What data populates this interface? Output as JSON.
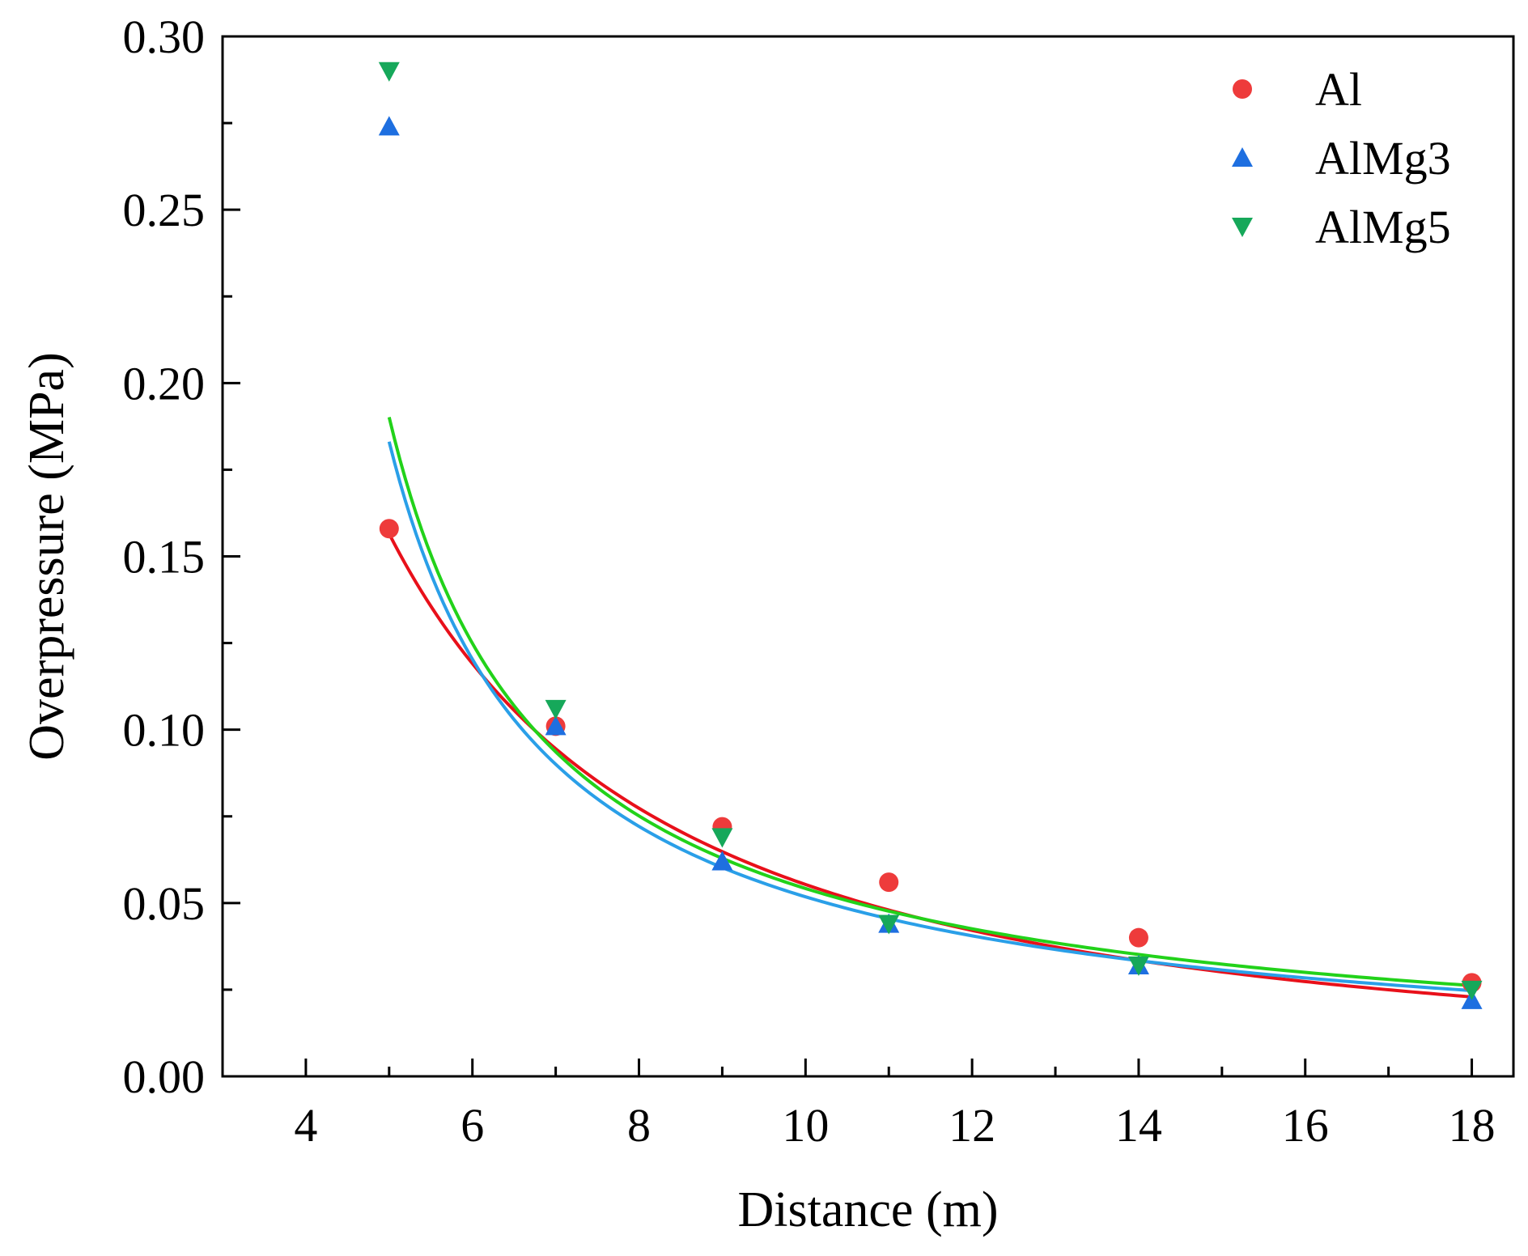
{
  "chart_data": {
    "type": "scatter",
    "title": "",
    "xlabel": "Distance (m)",
    "ylabel": "Overpressure (MPa)",
    "xlim": [
      3,
      18.5
    ],
    "ylim": [
      0,
      0.3
    ],
    "x_ticks": [
      4,
      6,
      8,
      10,
      12,
      14,
      16,
      18
    ],
    "x_tick_labels": [
      "4",
      "6",
      "8",
      "10",
      "12",
      "14",
      "16",
      "18"
    ],
    "x_minor_ticks": [
      5,
      7,
      9,
      11,
      13,
      15,
      17
    ],
    "y_ticks": [
      0,
      0.05,
      0.1,
      0.15,
      0.2,
      0.25,
      0.3
    ],
    "y_tick_labels": [
      "0.00",
      "0.05",
      "0.10",
      "0.15",
      "0.20",
      "0.25",
      "0.30"
    ],
    "y_minor_ticks": [
      0.025,
      0.075,
      0.125,
      0.175,
      0.225,
      0.275
    ],
    "grid": false,
    "legend_position": "top-right",
    "series": [
      {
        "name": "Al",
        "marker": "circle",
        "color": "#ee3b3b",
        "fit_color": "#e8101a",
        "x": [
          5,
          7,
          9,
          11,
          14,
          18
        ],
        "values": [
          0.158,
          0.101,
          0.072,
          0.056,
          0.04,
          0.027
        ],
        "fit": {
          "model": "power",
          "a": 1.75,
          "b": 1.5
        }
      },
      {
        "name": "AlMg3",
        "marker": "triangle-up",
        "color": "#1e6fe0",
        "fit_color": "#2a9fe8",
        "x": [
          5,
          7,
          9,
          11,
          14,
          18
        ],
        "values": [
          0.274,
          0.101,
          0.062,
          0.044,
          0.032,
          0.022
        ],
        "fit": {
          "model": "shifted-power",
          "a": 0.32,
          "c": 3.2,
          "b": 0.95
        }
      },
      {
        "name": "AlMg5",
        "marker": "triangle-down",
        "color": "#16a85a",
        "fit_color": "#22d21a",
        "x": [
          5,
          7,
          9,
          11,
          14,
          18
        ],
        "values": [
          0.29,
          0.106,
          0.069,
          0.044,
          0.032,
          0.025
        ],
        "fit": {
          "model": "shifted-power",
          "a": 0.32,
          "c": 3.25,
          "b": 0.93
        }
      }
    ]
  }
}
